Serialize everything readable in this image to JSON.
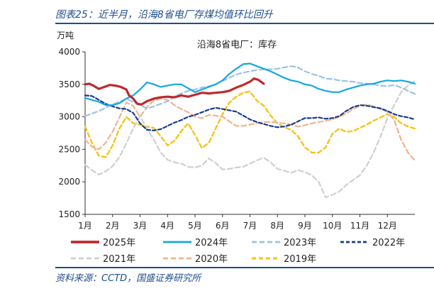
{
  "figure_title": "图表25：近半月，沿海8省电厂存煤均值环比回升",
  "source": "资料来源：CCTD，国盛证券研究所",
  "chart_data": {
    "type": "line",
    "title": "沿海8省电厂：库存",
    "ylabel": "万吨",
    "xlabel": "",
    "ylim": [
      1500,
      4000
    ],
    "yticks": [
      1500,
      2000,
      2500,
      3000,
      3500,
      4000
    ],
    "categories": [
      "1月",
      "2月",
      "3月",
      "4月",
      "5月",
      "6月",
      "7月",
      "8月",
      "9月",
      "10月",
      "11月",
      "12月"
    ],
    "x_unit": "month (1 = Jan 1, 13 = Dec 31)",
    "grid": false,
    "legend_position": "bottom",
    "series": [
      {
        "name": "2025年",
        "color": "#c0282c",
        "dash": "solid",
        "width": 3.2,
        "x": [
          1.0,
          1.15,
          1.3,
          1.5,
          1.7,
          1.9,
          2.1,
          2.3,
          2.5,
          2.6,
          2.75,
          2.9,
          3.05,
          3.25,
          3.5,
          3.75,
          4.0,
          4.25,
          4.5,
          4.75,
          5.0,
          5.25,
          5.5,
          5.75,
          6.0,
          6.25,
          6.5,
          6.75,
          7.0,
          7.15,
          7.3,
          7.5
        ],
        "y": [
          3500,
          3510,
          3480,
          3430,
          3460,
          3490,
          3480,
          3460,
          3420,
          3330,
          3280,
          3200,
          3190,
          3240,
          3280,
          3300,
          3310,
          3300,
          3330,
          3310,
          3340,
          3370,
          3360,
          3370,
          3380,
          3400,
          3450,
          3490,
          3540,
          3590,
          3570,
          3510
        ]
      },
      {
        "name": "2024年",
        "color": "#13a8e0",
        "dash": "solid",
        "width": 2.2,
        "x": [
          1.0,
          1.25,
          1.5,
          1.75,
          2.0,
          2.25,
          2.5,
          2.75,
          3.0,
          3.25,
          3.5,
          3.75,
          4.0,
          4.25,
          4.5,
          4.75,
          5.0,
          5.25,
          5.5,
          5.75,
          6.0,
          6.25,
          6.5,
          6.75,
          7.0,
          7.25,
          7.5,
          7.75,
          8.0,
          8.25,
          8.5,
          8.75,
          9.0,
          9.25,
          9.5,
          9.75,
          10.0,
          10.25,
          10.5,
          10.75,
          11.0,
          11.25,
          11.5,
          11.75,
          12.0,
          12.25,
          12.5,
          12.75,
          13.0
        ],
        "y": [
          3290,
          3260,
          3230,
          3180,
          3180,
          3210,
          3280,
          3330,
          3420,
          3530,
          3500,
          3460,
          3480,
          3500,
          3500,
          3440,
          3380,
          3420,
          3460,
          3500,
          3560,
          3660,
          3740,
          3810,
          3820,
          3780,
          3740,
          3700,
          3650,
          3600,
          3560,
          3540,
          3500,
          3480,
          3430,
          3400,
          3380,
          3380,
          3420,
          3450,
          3480,
          3500,
          3510,
          3540,
          3560,
          3550,
          3560,
          3540,
          3510
        ]
      },
      {
        "name": "2023年",
        "color": "#9cc3e6",
        "dash": "7,4",
        "width": 2.2,
        "x": [
          1.0,
          1.25,
          1.5,
          1.75,
          2.0,
          2.25,
          2.5,
          2.75,
          3.0,
          3.25,
          3.5,
          3.75,
          4.0,
          4.25,
          4.5,
          4.75,
          5.0,
          5.25,
          5.5,
          5.75,
          6.0,
          6.25,
          6.5,
          6.75,
          7.0,
          7.25,
          7.5,
          7.75,
          8.0,
          8.25,
          8.5,
          8.75,
          9.0,
          9.25,
          9.5,
          9.75,
          10.0,
          10.25,
          10.5,
          10.75,
          11.0,
          11.25,
          11.5,
          11.75,
          12.0,
          12.25,
          12.5,
          12.75,
          13.0
        ],
        "y": [
          3010,
          3050,
          3090,
          3140,
          3190,
          3230,
          3280,
          3230,
          3180,
          3130,
          3160,
          3200,
          3240,
          3310,
          3360,
          3400,
          3420,
          3450,
          3470,
          3500,
          3550,
          3600,
          3650,
          3680,
          3700,
          3720,
          3730,
          3730,
          3740,
          3760,
          3780,
          3760,
          3700,
          3660,
          3630,
          3590,
          3580,
          3560,
          3550,
          3540,
          3520,
          3510,
          3500,
          3480,
          3470,
          3490,
          3450,
          3400,
          3350
        ]
      },
      {
        "name": "2022年",
        "color": "#1a3c8c",
        "dash": "5,3",
        "width": 2.2,
        "x": [
          1.0,
          1.25,
          1.5,
          1.75,
          2.0,
          2.25,
          2.5,
          2.75,
          3.0,
          3.25,
          3.5,
          3.75,
          4.0,
          4.25,
          4.5,
          4.75,
          5.0,
          5.25,
          5.5,
          5.75,
          6.0,
          6.25,
          6.5,
          6.75,
          7.0,
          7.25,
          7.5,
          7.75,
          8.0,
          8.25,
          8.5,
          8.75,
          9.0,
          9.25,
          9.5,
          9.75,
          10.0,
          10.25,
          10.5,
          10.75,
          11.0,
          11.25,
          11.5,
          11.75,
          12.0,
          12.25,
          12.5,
          12.75,
          13.0
        ],
        "y": [
          3330,
          3320,
          3260,
          3200,
          3160,
          3130,
          3120,
          3060,
          2900,
          2800,
          2790,
          2810,
          2860,
          2910,
          2950,
          3000,
          3030,
          3070,
          3110,
          3140,
          3120,
          3100,
          3080,
          3020,
          2960,
          2920,
          2890,
          2860,
          2840,
          2850,
          2880,
          2930,
          2980,
          2980,
          2990,
          2970,
          2980,
          3010,
          3090,
          3150,
          3180,
          3170,
          3150,
          3130,
          3090,
          3040,
          3010,
          2990,
          2960
        ]
      },
      {
        "name": "2021年",
        "color": "#cfcfcf",
        "dash": "7,4",
        "width": 2.2,
        "x": [
          1.0,
          1.25,
          1.5,
          1.75,
          2.0,
          2.25,
          2.5,
          2.75,
          3.0,
          3.25,
          3.5,
          3.75,
          4.0,
          4.25,
          4.5,
          4.75,
          5.0,
          5.25,
          5.5,
          5.75,
          6.0,
          6.25,
          6.5,
          6.75,
          7.0,
          7.25,
          7.5,
          7.75,
          8.0,
          8.25,
          8.5,
          8.75,
          9.0,
          9.25,
          9.5,
          9.75,
          10.0,
          10.25,
          10.5,
          10.75,
          11.0,
          11.25,
          11.5,
          11.75,
          12.0,
          12.25,
          12.5,
          12.75,
          13.0
        ],
        "y": [
          2260,
          2180,
          2110,
          2160,
          2240,
          2380,
          2590,
          2820,
          3010,
          2820,
          2650,
          2450,
          2340,
          2300,
          2280,
          2230,
          2220,
          2250,
          2360,
          2290,
          2190,
          2200,
          2220,
          2230,
          2280,
          2330,
          2370,
          2300,
          2200,
          2170,
          2140,
          2180,
          2150,
          2100,
          2000,
          1760,
          1800,
          1850,
          1950,
          2030,
          2100,
          2250,
          2450,
          2700,
          2980,
          3180,
          3380,
          3480,
          3550
        ]
      },
      {
        "name": "2020年",
        "color": "#f2b38e",
        "dash": "7,4",
        "width": 2.2,
        "x": [
          1.0,
          1.25,
          1.5,
          1.75,
          2.0,
          2.25,
          2.5,
          2.75,
          3.0,
          3.25,
          3.5,
          3.75,
          4.0,
          4.25,
          4.5,
          4.75,
          5.0,
          5.25,
          5.5,
          5.75,
          6.0,
          6.25,
          6.5,
          6.75,
          7.0,
          7.25,
          7.5,
          7.75,
          8.0,
          8.25,
          8.5,
          8.75,
          9.0,
          9.25,
          9.5,
          9.75,
          10.0,
          10.25,
          10.5,
          10.75,
          11.0,
          11.25,
          11.5,
          11.75,
          12.0,
          12.25,
          12.5,
          12.75,
          13.0
        ],
        "y": [
          2650,
          2540,
          2500,
          2600,
          2770,
          2990,
          3220,
          3170,
          3000,
          3150,
          3250,
          3280,
          3260,
          3180,
          3120,
          3070,
          3000,
          2980,
          3030,
          3020,
          3000,
          2930,
          2860,
          2860,
          2880,
          2900,
          2920,
          2920,
          2910,
          2900,
          2880,
          2850,
          2870,
          2900,
          2920,
          2940,
          2960,
          3000,
          3050,
          3120,
          3170,
          3190,
          3160,
          3120,
          3080,
          2950,
          2650,
          2450,
          2330
        ]
      },
      {
        "name": "2019年",
        "color": "#f5c419",
        "dash": "6,4",
        "width": 2.4,
        "x": [
          1.0,
          1.25,
          1.5,
          1.75,
          2.0,
          2.25,
          2.5,
          2.75,
          3.0,
          3.25,
          3.5,
          3.75,
          4.0,
          4.25,
          4.5,
          4.75,
          5.0,
          5.25,
          5.5,
          5.75,
          6.0,
          6.25,
          6.5,
          6.75,
          7.0,
          7.25,
          7.5,
          7.75,
          8.0,
          8.25,
          8.5,
          8.75,
          9.0,
          9.25,
          9.5,
          9.75,
          10.0,
          10.25,
          10.5,
          10.75,
          11.0,
          11.25,
          11.5,
          11.75,
          12.0,
          12.25,
          12.5,
          12.75,
          13.0
        ],
        "y": [
          2850,
          2600,
          2400,
          2380,
          2560,
          2820,
          3000,
          2900,
          2880,
          2850,
          2830,
          2700,
          2560,
          2630,
          2780,
          2900,
          2720,
          2520,
          2600,
          2820,
          3040,
          3220,
          3310,
          3370,
          3390,
          3250,
          3170,
          3020,
          2900,
          2840,
          2800,
          2700,
          2530,
          2450,
          2450,
          2530,
          2740,
          2820,
          2770,
          2780,
          2830,
          2880,
          2940,
          2990,
          3040,
          3000,
          2900,
          2850,
          2820
        ]
      }
    ]
  }
}
